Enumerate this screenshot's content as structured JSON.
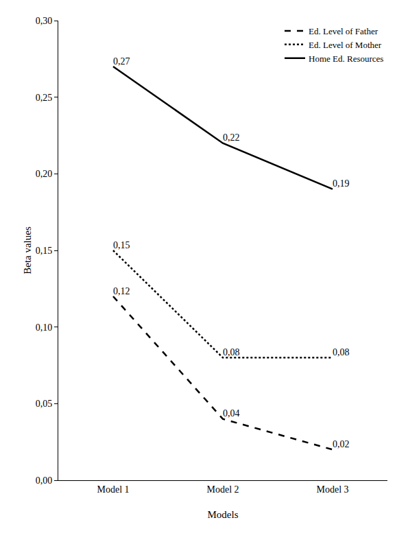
{
  "chart_data": {
    "type": "line",
    "x_label": "Models",
    "y_label": "Beta values",
    "categories": [
      "Model 1",
      "Model 2",
      "Model 3"
    ],
    "series": [
      {
        "name": "Ed. Level of Father",
        "color": "#000000",
        "line_style": "dash",
        "values": [
          0.12,
          0.04,
          0.02
        ],
        "value_labels": [
          "0,12",
          "0,04",
          "0,02"
        ]
      },
      {
        "name": "Ed. Level of Mother",
        "color": "#000000",
        "line_style": "dot",
        "values": [
          0.15,
          0.08,
          0.08
        ],
        "value_labels": [
          "0,15",
          "0,08",
          "0,08"
        ]
      },
      {
        "name": "Home Ed. Resources",
        "color": "#000000",
        "line_style": "solid",
        "values": [
          0.27,
          0.22,
          0.19
        ],
        "value_labels": [
          "0,27",
          "0,22",
          "0,19"
        ]
      }
    ],
    "ylim": [
      0,
      0.3
    ],
    "yticks": [
      {
        "value": 0,
        "label": "0,00"
      },
      {
        "value": 0.05,
        "label": "0,05"
      },
      {
        "value": 0.1,
        "label": "0,10"
      },
      {
        "value": 0.15,
        "label": "0,15"
      },
      {
        "value": 0.2,
        "label": "0,20"
      },
      {
        "value": 0.25,
        "label": "0,25"
      },
      {
        "value": 0.3,
        "label": "0,30"
      }
    ],
    "grid": false,
    "legend": "top right",
    "data_labels": true
  }
}
